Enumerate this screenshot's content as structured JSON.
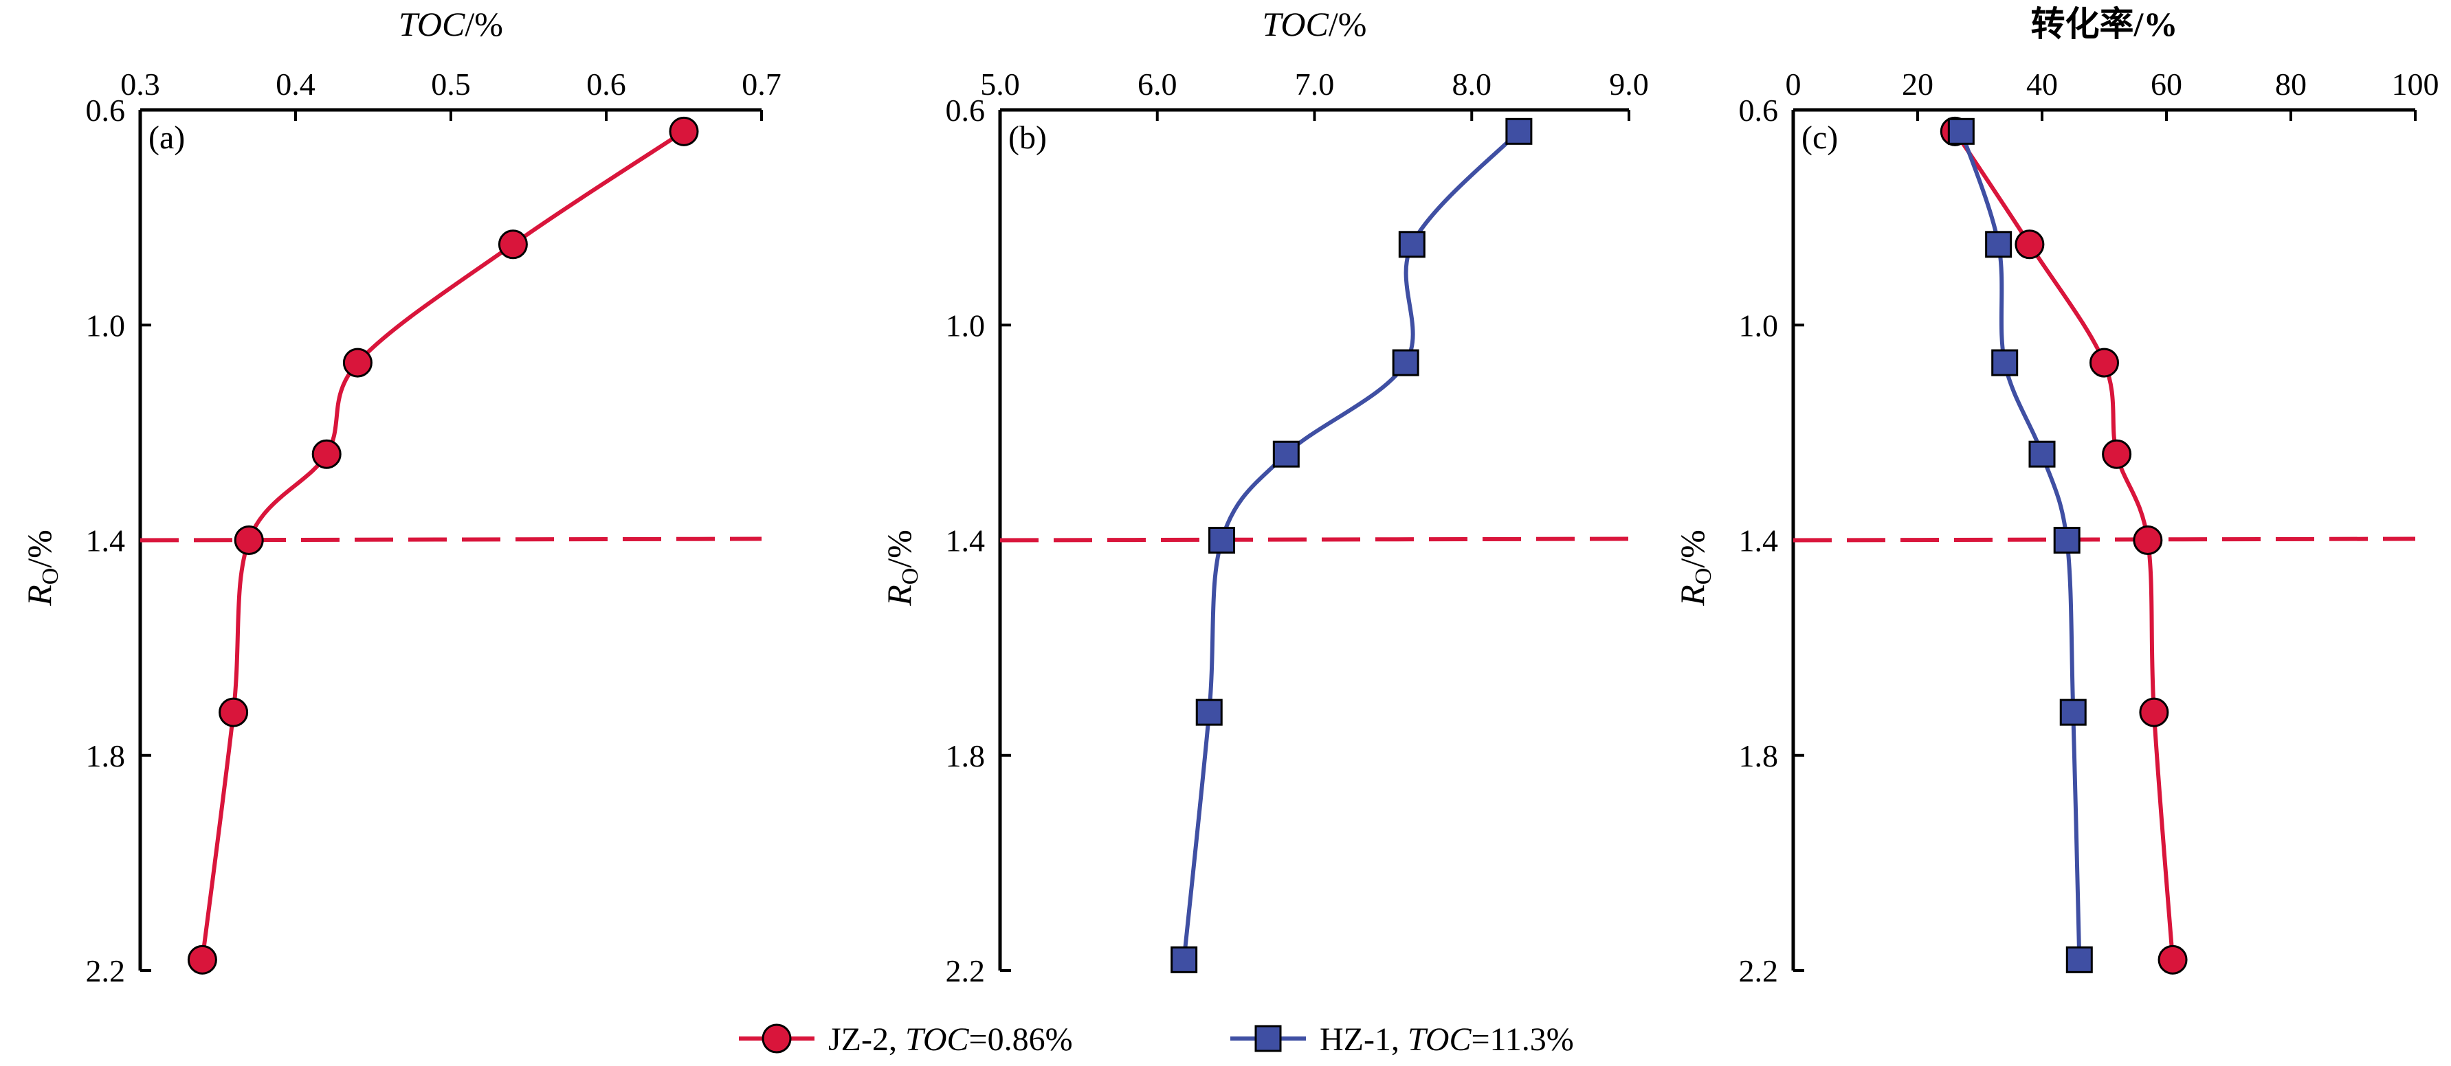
{
  "chart_data": [
    {
      "type": "line",
      "panel_label": "(a)",
      "xlabel_italic": "TOC",
      "xlabel_rest": "/%",
      "ylabel_main": "R",
      "ylabel_sub": "O",
      "ylabel_rest": "/%",
      "xlim": [
        0.3,
        0.7
      ],
      "ylim": [
        0.6,
        2.2
      ],
      "y_inverted": true,
      "x_axis_position": "top",
      "xticks": [
        "0.3",
        "0.4",
        "0.5",
        "0.6",
        "0.7"
      ],
      "yticks": [
        "0.6",
        "1.0",
        "1.4",
        "1.8",
        "2.2"
      ],
      "threshold_y": 1.4,
      "series": [
        {
          "series_key": "jz2",
          "x": [
            0.65,
            0.54,
            0.44,
            0.42,
            0.37,
            0.36,
            0.34
          ],
          "y": [
            0.64,
            0.85,
            1.07,
            1.24,
            1.4,
            1.72,
            2.18
          ]
        }
      ]
    },
    {
      "type": "line",
      "panel_label": "(b)",
      "xlabel_italic": "TOC",
      "xlabel_rest": "/%",
      "ylabel_main": "R",
      "ylabel_sub": "O",
      "ylabel_rest": "/%",
      "xlim": [
        5.0,
        9.0
      ],
      "ylim": [
        0.6,
        2.2
      ],
      "y_inverted": true,
      "x_axis_position": "top",
      "xticks": [
        "5.0",
        "6.0",
        "7.0",
        "8.0",
        "9.0"
      ],
      "yticks": [
        "0.6",
        "1.0",
        "1.4",
        "1.8",
        "2.2"
      ],
      "threshold_y": 1.4,
      "series": [
        {
          "series_key": "hz1",
          "x": [
            8.3,
            7.62,
            7.58,
            6.82,
            6.41,
            6.33,
            6.17
          ],
          "y": [
            0.64,
            0.85,
            1.07,
            1.24,
            1.4,
            1.72,
            2.18
          ]
        }
      ]
    },
    {
      "type": "line",
      "panel_label": "(c)",
      "xlabel": "转化率/%",
      "ylabel_main": "R",
      "ylabel_sub": "O",
      "ylabel_rest": "/%",
      "xlim": [
        0,
        100
      ],
      "ylim": [
        0.6,
        2.2
      ],
      "y_inverted": true,
      "x_axis_position": "top",
      "xticks": [
        "0",
        "20",
        "40",
        "60",
        "80",
        "100"
      ],
      "yticks": [
        "0.6",
        "1.0",
        "1.4",
        "1.8",
        "2.2"
      ],
      "threshold_y": 1.4,
      "series": [
        {
          "series_key": "jz2",
          "x": [
            26,
            38,
            50,
            52,
            57,
            58,
            61
          ],
          "y": [
            0.64,
            0.85,
            1.07,
            1.24,
            1.4,
            1.72,
            2.18
          ]
        },
        {
          "series_key": "hz1",
          "x": [
            27,
            33,
            34,
            40,
            44,
            45,
            46
          ],
          "y": [
            0.64,
            0.85,
            1.07,
            1.24,
            1.4,
            1.72,
            2.18
          ]
        }
      ]
    }
  ],
  "legend": {
    "placement": "bottom-center",
    "items": [
      {
        "series_key": "jz2",
        "name": "JZ-2",
        "sep": ", ",
        "toc_label": "TOC",
        "toc_value": "=0.86%"
      },
      {
        "series_key": "hz1",
        "name": "HZ-1",
        "sep": ", ",
        "toc_label": "TOC",
        "toc_value": "=11.3%"
      }
    ]
  },
  "styles": {
    "jz2": {
      "color": "#d9153b",
      "marker": "circle"
    },
    "hz1": {
      "color": "#3f4fa3",
      "marker": "square"
    },
    "threshold_color": "#d9153b"
  }
}
